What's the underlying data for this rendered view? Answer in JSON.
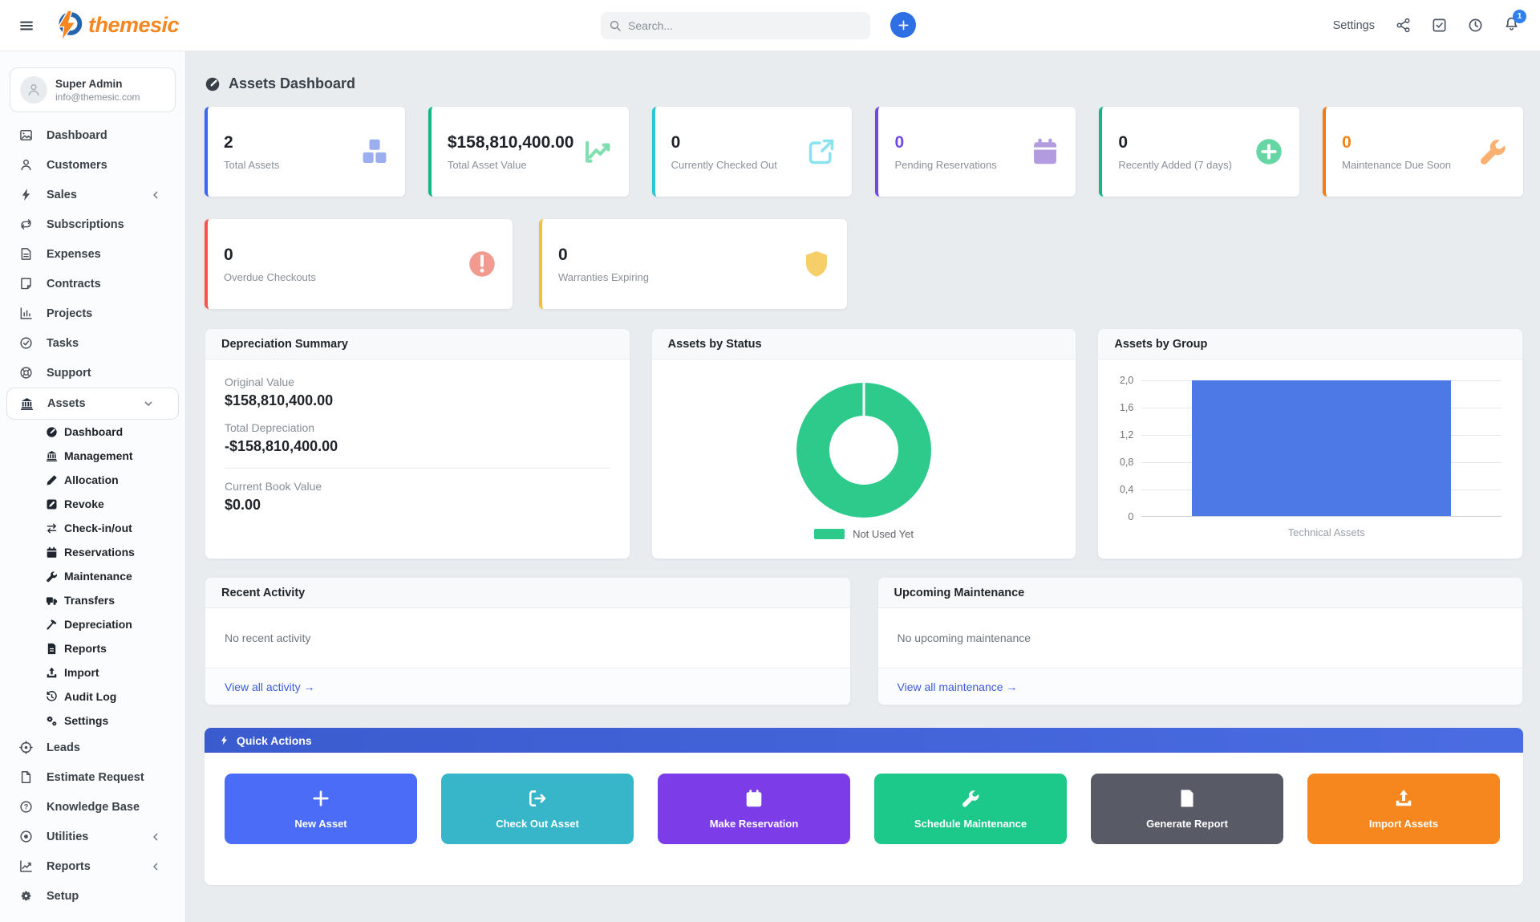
{
  "theme": {
    "brand_orange": "#f6861f",
    "brand_blue": "#2563ae",
    "primary_blue": "#2f6fe4",
    "badge_blue": "#2f80ed",
    "link_color": "#3b5bdb"
  },
  "header": {
    "brand": "themesic",
    "search_placeholder": "Search...",
    "settings_label": "Settings",
    "notification_count": "1"
  },
  "sidebar": {
    "user": {
      "name": "Super Admin",
      "email": "info@themesic.com"
    },
    "items": [
      {
        "label": "Dashboard",
        "icon": "dashboard-icon"
      },
      {
        "label": "Customers",
        "icon": "person-icon"
      },
      {
        "label": "Sales",
        "icon": "lightning-icon",
        "chevron": "left"
      },
      {
        "label": "Subscriptions",
        "icon": "repeat-icon"
      },
      {
        "label": "Expenses",
        "icon": "file-text-icon"
      },
      {
        "label": "Contracts",
        "icon": "journal-icon"
      },
      {
        "label": "Projects",
        "icon": "projects-icon"
      },
      {
        "label": "Tasks",
        "icon": "check-circle-icon"
      },
      {
        "label": "Support",
        "icon": "life-ring-icon"
      },
      {
        "label": "Assets",
        "icon": "bank-icon",
        "chevron": "down",
        "active": true
      }
    ],
    "assets_submenu": [
      {
        "label": "Dashboard",
        "icon": "speedometer-icon",
        "active": true
      },
      {
        "label": "Management",
        "icon": "bank-icon"
      },
      {
        "label": "Allocation",
        "icon": "pencil-icon"
      },
      {
        "label": "Revoke",
        "icon": "pencil-square-icon"
      },
      {
        "label": "Check-in/out",
        "icon": "swap-arrows-icon"
      },
      {
        "label": "Reservations",
        "icon": "calendar-icon"
      },
      {
        "label": "Maintenance",
        "icon": "wrench-icon"
      },
      {
        "label": "Transfers",
        "icon": "truck-icon"
      },
      {
        "label": "Depreciation",
        "icon": "hammer-icon"
      },
      {
        "label": "Reports",
        "icon": "file-bar-icon"
      },
      {
        "label": "Import",
        "icon": "upload-icon"
      },
      {
        "label": "Audit Log",
        "icon": "history-icon"
      },
      {
        "label": "Settings",
        "icon": "gears-icon"
      }
    ],
    "items_bottom": [
      {
        "label": "Leads",
        "icon": "target-icon"
      },
      {
        "label": "Estimate Request",
        "icon": "file-icon"
      },
      {
        "label": "Knowledge Base",
        "icon": "question-circle-icon"
      },
      {
        "label": "Utilities",
        "icon": "record-circle-icon",
        "chevron": "left"
      },
      {
        "label": "Reports",
        "icon": "graph-icon",
        "chevron": "left"
      },
      {
        "label": "Setup",
        "icon": "gear-icon"
      }
    ]
  },
  "page": {
    "title": "Assets Dashboard",
    "title_icon": "speedometer-icon"
  },
  "stats": [
    {
      "value": "2",
      "label": "Total Assets",
      "accent": "#4263eb",
      "icon": "boxes-icon",
      "icon_color": "#9aaef0"
    },
    {
      "value": "$158,810,400.00",
      "label": "Total Asset Value",
      "accent": "#10b981",
      "icon": "graph-up-icon",
      "icon_color": "#7fdfae"
    },
    {
      "value": "0",
      "label": "Currently Checked Out",
      "accent": "#2fc4d4",
      "icon": "external-link-icon",
      "icon_color": "#8ae4ef"
    },
    {
      "value": "0",
      "label": "Pending Reservations",
      "accent": "#7048e8",
      "value_color": "#7048e8",
      "icon": "calendar-icon",
      "icon_color": "#b39be0"
    },
    {
      "value": "0",
      "label": "Recently Added (7 days)",
      "accent": "#10b981",
      "icon": "plus-circle-icon",
      "icon_color": "#66d7a4"
    },
    {
      "value": "0",
      "label": "Maintenance Due Soon",
      "accent": "#f7790f",
      "value_color": "#f7820f",
      "icon": "wrench-icon",
      "icon_color": "#f9b070"
    }
  ],
  "alerts": [
    {
      "value": "0",
      "label": "Overdue Checkouts",
      "accent": "#fa5252",
      "icon": "exclamation-circle-icon",
      "icon_color": "#f29a90"
    },
    {
      "value": "0",
      "label": "Warranties Expiring",
      "accent": "#f5c02c",
      "icon": "shield-icon",
      "icon_color": "#f6cf6b"
    }
  ],
  "depreciation": {
    "title": "Depreciation Summary",
    "original_label": "Original Value",
    "original_value": "$158,810,400.00",
    "total_label": "Total Depreciation",
    "total_value": "-$158,810,400.00",
    "book_label": "Current Book Value",
    "book_value": "$0.00"
  },
  "chart_data": [
    {
      "type": "pie",
      "donut": true,
      "title": "Assets by Status",
      "labels": [
        "Not Used Yet"
      ],
      "values": [
        2
      ],
      "colors": [
        "#2dca8c"
      ],
      "legend_position": "bottom"
    },
    {
      "type": "bar",
      "title": "Assets by Group",
      "categories": [
        "Technical Assets"
      ],
      "values": [
        2
      ],
      "ylim": [
        0,
        2
      ],
      "ytick_labels_top_down": [
        "2,0",
        "1,6",
        "1,2",
        "0,8",
        "0,4",
        "0"
      ],
      "bar_color": "#4c79e6",
      "grid": true,
      "legend_position": "none"
    }
  ],
  "activity": {
    "title": "Recent Activity",
    "empty": "No recent activity",
    "link": "View all activity →"
  },
  "maintenance": {
    "title": "Upcoming Maintenance",
    "empty": "No upcoming maintenance",
    "link": "View all maintenance →"
  },
  "quick_actions": {
    "title": "Quick Actions",
    "header_icon": "lightning-icon",
    "header_color": "#3f63e0",
    "buttons": [
      {
        "label": "New Asset",
        "color": "#4a6cf7",
        "icon": "plus-icon"
      },
      {
        "label": "Check Out Asset",
        "color": "#38b6c9",
        "icon": "checkout-icon"
      },
      {
        "label": "Make Reservation",
        "color": "#7c3ce8",
        "icon": "calendar-icon"
      },
      {
        "label": "Schedule Maintenance",
        "color": "#1cc88a",
        "icon": "wrench-icon"
      },
      {
        "label": "Generate Report",
        "color": "#585b66",
        "icon": "file-bar-icon"
      },
      {
        "label": "Import Assets",
        "color": "#f6871f",
        "icon": "upload-icon"
      }
    ]
  }
}
